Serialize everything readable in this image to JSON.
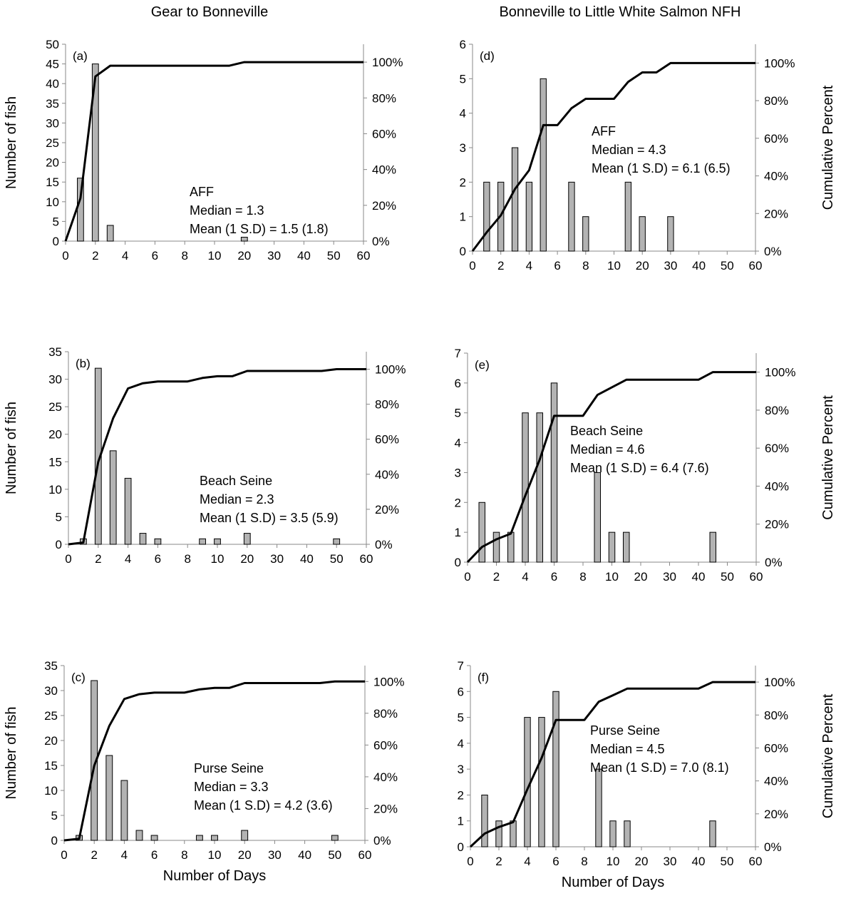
{
  "column_titles": [
    "Gear to Bonneville",
    "Bonneville to Little White Salmon NFH"
  ],
  "chart_data": [
    {
      "type": "bar",
      "panel_label": "(a)",
      "title": "",
      "xlabel": "",
      "ylabel": "Number of fish",
      "y2label": "",
      "categories": [
        "0",
        "1",
        "2",
        "3",
        "4",
        "5",
        "6",
        "7",
        "8",
        "9",
        "10",
        "15",
        "20",
        "25",
        "30",
        "35",
        "40",
        "45",
        "50",
        "55",
        "60"
      ],
      "xtick_labels": [
        "0",
        "2",
        "4",
        "6",
        "8",
        "10",
        "20",
        "30",
        "40",
        "50",
        "60"
      ],
      "ylim": [
        0,
        50
      ],
      "yticks": [
        0,
        5,
        10,
        15,
        20,
        25,
        30,
        35,
        40,
        45,
        50
      ],
      "y2lim": [
        0,
        110
      ],
      "y2ticks": [
        "0%",
        "20%",
        "40%",
        "60%",
        "80%",
        "100%"
      ],
      "series": [
        {
          "name": "",
          "kind": "bar",
          "values": [
            0,
            16,
            45,
            4,
            0,
            0,
            0,
            0,
            0,
            0,
            0,
            0,
            1,
            0,
            0,
            0,
            0,
            0,
            0,
            0,
            0
          ]
        },
        {
          "name": "",
          "kind": "cumulative_line",
          "values": [
            0,
            24,
            92,
            98,
            98,
            98,
            98,
            98,
            98,
            98,
            98,
            98,
            100,
            100,
            100,
            100,
            100,
            100,
            100,
            100,
            100
          ]
        }
      ],
      "annotation": [
        "AFF",
        "Median = 1.3",
        "Mean (1 S.D) = 1.5 (1.8)"
      ],
      "colors": {
        "bar": "#b3b3b3",
        "line": "#000000"
      }
    },
    {
      "type": "bar",
      "panel_label": "(b)",
      "title": "",
      "xlabel": "",
      "ylabel": "Number of fish",
      "y2label": "",
      "categories": [
        "0",
        "1",
        "2",
        "3",
        "4",
        "5",
        "6",
        "7",
        "8",
        "9",
        "10",
        "15",
        "20",
        "25",
        "30",
        "35",
        "40",
        "45",
        "50",
        "55",
        "60"
      ],
      "xtick_labels": [
        "0",
        "2",
        "4",
        "6",
        "8",
        "10",
        "20",
        "30",
        "40",
        "50",
        "60"
      ],
      "ylim": [
        0,
        35
      ],
      "yticks": [
        0,
        5,
        10,
        15,
        20,
        25,
        30,
        35
      ],
      "y2lim": [
        0,
        110
      ],
      "y2ticks": [
        "0%",
        "20%",
        "40%",
        "60%",
        "80%",
        "100%"
      ],
      "series": [
        {
          "name": "",
          "kind": "bar",
          "values": [
            0,
            1,
            32,
            17,
            12,
            2,
            1,
            0,
            0,
            1,
            1,
            0,
            2,
            0,
            0,
            0,
            0,
            0,
            1,
            0,
            0
          ]
        },
        {
          "name": "",
          "kind": "cumulative_line",
          "values": [
            0,
            1,
            47,
            72,
            89,
            92,
            93,
            93,
            93,
            95,
            96,
            96,
            99,
            99,
            99,
            99,
            99,
            99,
            100,
            100,
            100
          ]
        }
      ],
      "annotation": [
        "Beach Seine",
        "Median = 2.3",
        "Mean (1 S.D) = 3.5 (5.9)"
      ],
      "colors": {
        "bar": "#b3b3b3",
        "line": "#000000"
      }
    },
    {
      "type": "bar",
      "panel_label": "(c)",
      "title": "",
      "xlabel": "Number of Days",
      "ylabel": "Number of fish",
      "y2label": "",
      "categories": [
        "0",
        "1",
        "2",
        "3",
        "4",
        "5",
        "6",
        "7",
        "8",
        "9",
        "10",
        "15",
        "20",
        "25",
        "30",
        "35",
        "40",
        "45",
        "50",
        "55",
        "60"
      ],
      "xtick_labels": [
        "0",
        "2",
        "4",
        "6",
        "8",
        "10",
        "20",
        "30",
        "40",
        "50",
        "60"
      ],
      "ylim": [
        0,
        35
      ],
      "yticks": [
        0,
        5,
        10,
        15,
        20,
        25,
        30,
        35
      ],
      "y2lim": [
        0,
        110
      ],
      "y2ticks": [
        "0%",
        "20%",
        "40%",
        "60%",
        "80%",
        "100%"
      ],
      "series": [
        {
          "name": "",
          "kind": "bar",
          "values": [
            0,
            1,
            32,
            17,
            12,
            2,
            1,
            0,
            0,
            1,
            1,
            0,
            2,
            0,
            0,
            0,
            0,
            0,
            1,
            0,
            0
          ]
        },
        {
          "name": "",
          "kind": "cumulative_line",
          "values": [
            0,
            1,
            47,
            72,
            89,
            92,
            93,
            93,
            93,
            95,
            96,
            96,
            99,
            99,
            99,
            99,
            99,
            99,
            100,
            100,
            100
          ]
        }
      ],
      "annotation": [
        "Purse Seine",
        "Median = 3.3",
        "Mean (1 S.D) = 4.2 (3.6)"
      ],
      "colors": {
        "bar": "#b3b3b3",
        "line": "#000000"
      }
    },
    {
      "type": "bar",
      "panel_label": "(d)",
      "title": "",
      "xlabel": "",
      "ylabel": "",
      "y2label": "Cumulative Percent",
      "categories": [
        "0",
        "1",
        "2",
        "3",
        "4",
        "5",
        "6",
        "7",
        "8",
        "9",
        "10",
        "15",
        "20",
        "25",
        "30",
        "35",
        "40",
        "45",
        "50",
        "55",
        "60"
      ],
      "xtick_labels": [
        "0",
        "2",
        "4",
        "6",
        "8",
        "10",
        "20",
        "30",
        "40",
        "50",
        "60"
      ],
      "ylim": [
        0,
        6
      ],
      "yticks": [
        0,
        1,
        2,
        3,
        4,
        5,
        6
      ],
      "y2lim": [
        0,
        110
      ],
      "y2ticks": [
        "0%",
        "20%",
        "40%",
        "60%",
        "80%",
        "100%"
      ],
      "series": [
        {
          "name": "",
          "kind": "bar",
          "values": [
            0,
            2,
            2,
            3,
            2,
            5,
            0,
            2,
            1,
            0,
            0,
            2,
            1,
            0,
            1,
            0,
            0,
            0,
            0,
            0,
            0
          ]
        },
        {
          "name": "",
          "kind": "cumulative_line",
          "values": [
            0,
            10,
            19,
            33,
            43,
            67,
            67,
            76,
            81,
            81,
            81,
            90,
            95,
            95,
            100,
            100,
            100,
            100,
            100,
            100,
            100
          ]
        }
      ],
      "annotation": [
        "AFF",
        "Median = 4.3",
        "Mean (1 S.D) = 6.1 (6.5)"
      ],
      "colors": {
        "bar": "#b3b3b3",
        "line": "#000000"
      }
    },
    {
      "type": "bar",
      "panel_label": "(e)",
      "title": "",
      "xlabel": "",
      "ylabel": "",
      "y2label": "Cumulative Percent",
      "categories": [
        "0",
        "1",
        "2",
        "3",
        "4",
        "5",
        "6",
        "7",
        "8",
        "9",
        "10",
        "15",
        "20",
        "25",
        "30",
        "35",
        "40",
        "45",
        "50",
        "55",
        "60"
      ],
      "xtick_labels": [
        "0",
        "2",
        "4",
        "6",
        "8",
        "10",
        "20",
        "30",
        "40",
        "50",
        "60"
      ],
      "ylim": [
        0,
        7
      ],
      "yticks": [
        0,
        1,
        2,
        3,
        4,
        5,
        6,
        7
      ],
      "y2lim": [
        0,
        110
      ],
      "y2ticks": [
        "0%",
        "20%",
        "40%",
        "60%",
        "80%",
        "100%"
      ],
      "series": [
        {
          "name": "",
          "kind": "bar",
          "values": [
            0,
            2,
            1,
            1,
            5,
            5,
            6,
            0,
            0,
            3,
            1,
            1,
            0,
            0,
            0,
            0,
            0,
            1,
            0,
            0,
            0
          ]
        },
        {
          "name": "",
          "kind": "cumulative_line",
          "values": [
            0,
            8,
            12,
            15,
            35,
            54,
            77,
            77,
            77,
            88,
            92,
            96,
            96,
            96,
            96,
            96,
            96,
            100,
            100,
            100,
            100
          ]
        }
      ],
      "annotation": [
        "Beach Seine",
        "Median = 4.6",
        "Mean (1 S.D) = 6.4 (7.6)"
      ],
      "colors": {
        "bar": "#b3b3b3",
        "line": "#000000"
      }
    },
    {
      "type": "bar",
      "panel_label": "(f)",
      "title": "",
      "xlabel": "Number of Days",
      "ylabel": "",
      "y2label": "Cumulative Percent",
      "categories": [
        "0",
        "1",
        "2",
        "3",
        "4",
        "5",
        "6",
        "7",
        "8",
        "9",
        "10",
        "15",
        "20",
        "25",
        "30",
        "35",
        "40",
        "45",
        "50",
        "55",
        "60"
      ],
      "xtick_labels": [
        "0",
        "2",
        "4",
        "6",
        "8",
        "10",
        "20",
        "30",
        "40",
        "50",
        "60"
      ],
      "ylim": [
        0,
        7
      ],
      "yticks": [
        0,
        1,
        2,
        3,
        4,
        5,
        6,
        7
      ],
      "y2lim": [
        0,
        110
      ],
      "y2ticks": [
        "0%",
        "20%",
        "40%",
        "60%",
        "80%",
        "100%"
      ],
      "series": [
        {
          "name": "",
          "kind": "bar",
          "values": [
            0,
            2,
            1,
            1,
            5,
            5,
            6,
            0,
            0,
            3,
            1,
            1,
            0,
            0,
            0,
            0,
            0,
            1,
            0,
            0,
            0
          ]
        },
        {
          "name": "",
          "kind": "cumulative_line",
          "values": [
            0,
            8,
            12,
            15,
            35,
            54,
            77,
            77,
            77,
            88,
            92,
            96,
            96,
            96,
            96,
            96,
            96,
            100,
            100,
            100,
            100
          ]
        }
      ],
      "annotation": [
        "Purse Seine",
        "Median = 4.5",
        "Mean (1 S.D) = 7.0 (8.1)"
      ],
      "colors": {
        "bar": "#b3b3b3",
        "line": "#000000"
      }
    }
  ]
}
